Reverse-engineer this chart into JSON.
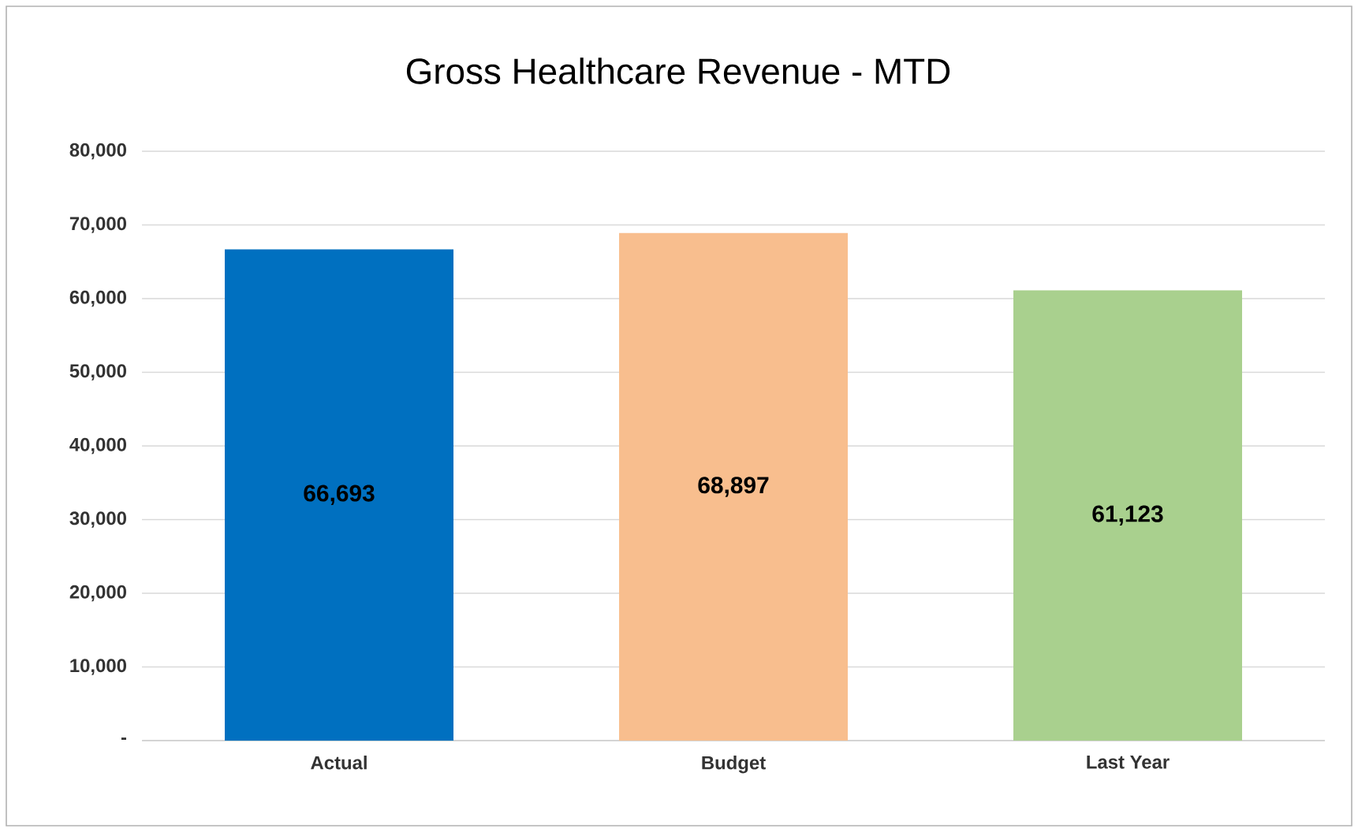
{
  "chart_data": {
    "type": "bar",
    "title": "Gross Healthcare Revenue - MTD",
    "categories": [
      "Actual",
      "Budget",
      "Last Year"
    ],
    "values": [
      66693,
      68897,
      61123
    ],
    "colors": [
      "#0070c0",
      "#f8be8e",
      "#a9d08e"
    ],
    "value_labels": [
      "66,693",
      "68,897",
      "61,123"
    ],
    "ylim": [
      0,
      80000
    ],
    "yticks": [
      {
        "value": 0,
        "label": "-"
      },
      {
        "value": 10000,
        "label": "10,000"
      },
      {
        "value": 20000,
        "label": "20,000"
      },
      {
        "value": 30000,
        "label": "30,000"
      },
      {
        "value": 40000,
        "label": "40,000"
      },
      {
        "value": 50000,
        "label": "50,000"
      },
      {
        "value": 60000,
        "label": "60,000"
      },
      {
        "value": 70000,
        "label": "70,000"
      },
      {
        "value": 80000,
        "label": "80,000"
      }
    ],
    "grid": "y"
  }
}
